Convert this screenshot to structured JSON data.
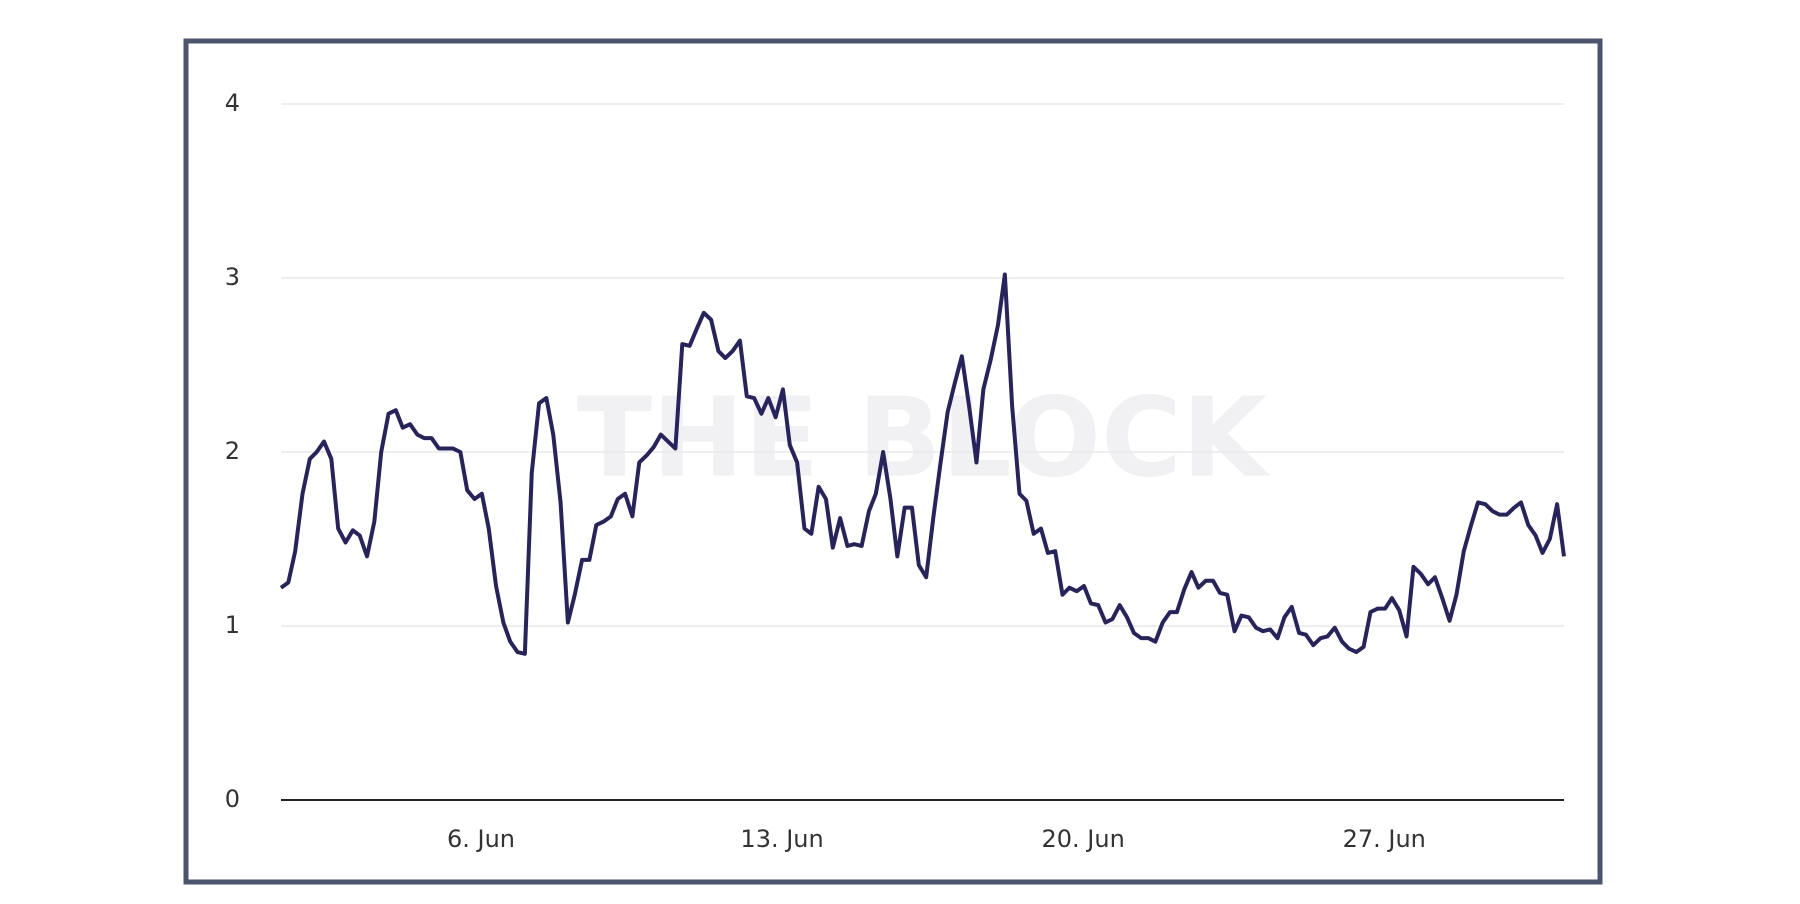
{
  "chart_data": {
    "type": "line",
    "watermark": "THE BLOCK",
    "color": "#27235e",
    "grid": true,
    "x": [
      1.35,
      1.52,
      1.68,
      1.85,
      2.02,
      2.18,
      2.35,
      2.52,
      2.68,
      2.85,
      3.02,
      3.18,
      3.35,
      3.52,
      3.68,
      3.85,
      4.02,
      4.18,
      4.35,
      4.52,
      4.68,
      4.85,
      5.02,
      5.18,
      5.35,
      5.52,
      5.68,
      5.85,
      6.02,
      6.18,
      6.35,
      6.52,
      6.68,
      6.85,
      7.02,
      7.18,
      7.35,
      7.52,
      7.68,
      7.85,
      8.02,
      8.18,
      8.35,
      8.52,
      8.68,
      8.85,
      9.02,
      9.18,
      9.35,
      9.52,
      9.68,
      9.85,
      10.02,
      10.18,
      10.35,
      10.52,
      10.68,
      10.85,
      11.02,
      11.18,
      11.35,
      11.52,
      11.68,
      11.85,
      12.02,
      12.18,
      12.35,
      12.52,
      12.68,
      12.85,
      13.02,
      13.18,
      13.35,
      13.52,
      13.68,
      13.85,
      14.02,
      14.18,
      14.35,
      14.52,
      14.68,
      14.85,
      15.02,
      15.18,
      15.35,
      15.52,
      15.68,
      15.85,
      16.02,
      16.18,
      16.35,
      16.52,
      16.68,
      16.85,
      17.02,
      17.18,
      17.35,
      17.52,
      17.68,
      17.85,
      18.02,
      18.18,
      18.35,
      18.52,
      18.68,
      18.85,
      19.02,
      19.18,
      19.35,
      19.52,
      19.68,
      19.85,
      20.02,
      20.18,
      20.35,
      20.52,
      20.68,
      20.85,
      21.02,
      21.18,
      21.35,
      21.52,
      21.68,
      21.85,
      22.02,
      22.18,
      22.35,
      22.52,
      22.68,
      22.85,
      23.02,
      23.18,
      23.35,
      23.52,
      23.68,
      23.85,
      24.02,
      24.18,
      24.35,
      24.52,
      24.68,
      24.85,
      25.02,
      25.18,
      25.35,
      25.52,
      25.68,
      25.85,
      26.02,
      26.18,
      26.35,
      26.52,
      26.68,
      26.85,
      27.02,
      27.18,
      27.35,
      27.52,
      27.68,
      27.85,
      28.02,
      28.18,
      28.35,
      28.52,
      28.68,
      28.85,
      29.02,
      29.18,
      29.35,
      29.52,
      29.68,
      29.85,
      30.02,
      30.18,
      30.35,
      30.52,
      30.68,
      30.85,
      31.02,
      31.18
    ],
    "values": [
      1.22,
      1.25,
      1.43,
      1.76,
      1.96,
      2.0,
      2.06,
      1.96,
      1.56,
      1.48,
      1.55,
      1.52,
      1.4,
      1.6,
      2.0,
      2.22,
      2.24,
      2.14,
      2.16,
      2.1,
      2.08,
      2.08,
      2.02,
      2.02,
      2.02,
      2.0,
      1.78,
      1.73,
      1.76,
      1.56,
      1.23,
      1.02,
      0.91,
      0.85,
      0.84,
      1.88,
      2.28,
      2.31,
      2.1,
      1.71,
      1.02,
      1.18,
      1.38,
      1.38,
      1.58,
      1.6,
      1.63,
      1.73,
      1.76,
      1.63,
      1.94,
      1.98,
      2.03,
      2.1,
      2.06,
      2.02,
      2.62,
      2.61,
      2.71,
      2.8,
      2.76,
      2.58,
      2.54,
      2.58,
      2.64,
      2.32,
      2.31,
      2.22,
      2.31,
      2.2,
      2.36,
      2.04,
      1.94,
      1.56,
      1.53,
      1.8,
      1.73,
      1.45,
      1.62,
      1.46,
      1.47,
      1.46,
      1.66,
      1.76,
      2.0,
      1.73,
      1.4,
      1.68,
      1.68,
      1.35,
      1.28,
      1.63,
      1.93,
      2.23,
      2.4,
      2.55,
      2.26,
      1.94,
      2.36,
      2.53,
      2.73,
      3.02,
      2.26,
      1.76,
      1.72,
      1.53,
      1.56,
      1.42,
      1.43,
      1.18,
      1.22,
      1.2,
      1.23,
      1.13,
      1.12,
      1.02,
      1.04,
      1.12,
      1.05,
      0.96,
      0.93,
      0.93,
      0.91,
      1.02,
      1.08,
      1.08,
      1.21,
      1.31,
      1.22,
      1.26,
      1.26,
      1.19,
      1.18,
      0.97,
      1.06,
      1.05,
      0.99,
      0.97,
      0.98,
      0.93,
      1.05,
      1.11,
      0.96,
      0.95,
      0.89,
      0.93,
      0.94,
      0.99,
      0.91,
      0.87,
      0.85,
      0.88,
      1.08,
      1.1,
      1.1,
      1.16,
      1.09,
      0.94,
      1.34,
      1.3,
      1.24,
      1.28,
      1.16,
      1.03,
      1.18,
      1.43,
      1.58,
      1.71,
      1.7,
      1.66,
      1.64,
      1.64,
      1.68,
      1.71,
      1.58,
      1.52,
      1.42,
      1.5,
      1.7,
      1.4
    ],
    "xlim": [
      1.35,
      31.18
    ],
    "xticks": [
      {
        "value": 6,
        "label": "6. Jun"
      },
      {
        "value": 13,
        "label": "13. Jun"
      },
      {
        "value": 20,
        "label": "20. Jun"
      },
      {
        "value": 27,
        "label": "27. Jun"
      }
    ],
    "ylim": [
      0,
      4
    ],
    "yticks": [
      0,
      1,
      2,
      3,
      4
    ]
  }
}
